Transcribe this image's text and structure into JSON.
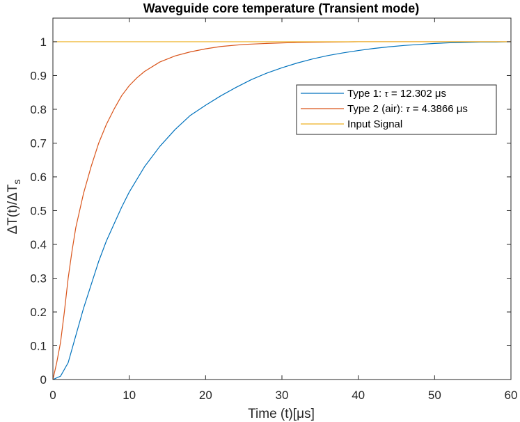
{
  "chart_data": {
    "type": "line",
    "title": "Waveguide core temperature (Transient mode)",
    "xlabel": "Time (t)[μs]",
    "ylabel": {
      "main": "ΔT(t)/ΔT",
      "subscript": "s"
    },
    "xlim": [
      0,
      60
    ],
    "ylim": [
      0,
      1.07
    ],
    "xticks": [
      0,
      10,
      20,
      30,
      40,
      50,
      60
    ],
    "xtick_labels": [
      "0",
      "10",
      "20",
      "30",
      "40",
      "50",
      "60"
    ],
    "yticks": [
      0,
      0.1,
      0.2,
      0.3,
      0.4,
      0.5,
      0.6,
      0.7,
      0.8,
      0.9,
      1
    ],
    "ytick_labels": [
      "0",
      "0.1",
      "0.2",
      "0.3",
      "0.4",
      "0.5",
      "0.6",
      "0.7",
      "0.8",
      "0.9",
      "1"
    ],
    "grid": false,
    "legend_position": "top-right",
    "series": [
      {
        "name": "Type 1: τ = 12.302 μs",
        "legend": {
          "prefix": "Type 1: ",
          "symbol": "τ",
          "suffix": " = 12.302 μs"
        },
        "color": "#0072BD",
        "x": [
          0,
          1,
          2,
          3,
          4,
          5,
          6,
          7,
          8,
          9,
          10,
          12,
          14,
          16,
          18,
          20,
          22,
          24,
          26,
          28,
          30,
          32,
          34,
          36,
          38,
          40,
          42,
          44,
          46,
          48,
          50,
          52,
          54,
          56,
          58,
          60
        ],
        "y": [
          0,
          0.01,
          0.05,
          0.13,
          0.21,
          0.28,
          0.35,
          0.41,
          0.46,
          0.51,
          0.555,
          0.63,
          0.69,
          0.74,
          0.782,
          0.812,
          0.84,
          0.865,
          0.888,
          0.907,
          0.923,
          0.937,
          0.949,
          0.959,
          0.967,
          0.974,
          0.98,
          0.985,
          0.989,
          0.992,
          0.995,
          0.997,
          0.998,
          0.999,
          0.999,
          1.0
        ]
      },
      {
        "name": "Type 2 (air): τ = 4.3866 μs",
        "legend": {
          "prefix": "Type 2 (air): ",
          "symbol": "τ",
          "suffix": " = 4.3866 μs"
        },
        "color": "#D95319",
        "x": [
          0,
          0.5,
          1,
          1.5,
          2,
          2.5,
          3,
          4,
          5,
          6,
          7,
          8,
          9,
          10,
          11,
          12,
          14,
          16,
          18,
          20,
          22,
          25,
          28,
          32,
          36,
          40,
          45,
          50,
          60
        ],
        "y": [
          0,
          0.05,
          0.11,
          0.2,
          0.3,
          0.38,
          0.45,
          0.55,
          0.63,
          0.7,
          0.755,
          0.8,
          0.84,
          0.87,
          0.893,
          0.912,
          0.94,
          0.958,
          0.97,
          0.979,
          0.986,
          0.992,
          0.995,
          0.998,
          0.999,
          1.0,
          1.0,
          1.0,
          1.0
        ]
      },
      {
        "name": "Input Signal",
        "legend": {
          "prefix": "Input Signal",
          "symbol": "",
          "suffix": ""
        },
        "color": "#EDB120",
        "x": [
          0,
          60
        ],
        "y": [
          1,
          1
        ]
      }
    ]
  }
}
